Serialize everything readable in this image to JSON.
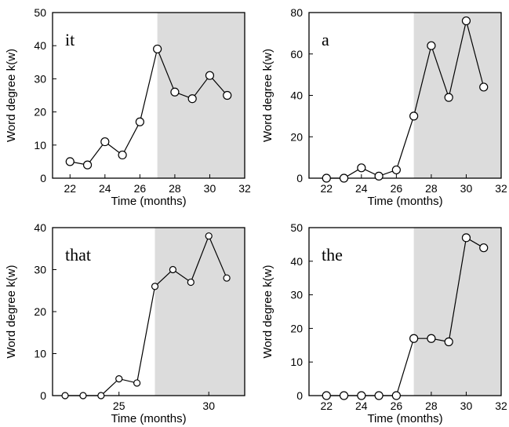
{
  "colors": {
    "shade": "#dcdcdc",
    "line": "#000000",
    "marker_fill": "#ffffff"
  },
  "chart_data": [
    {
      "type": "line",
      "panel_label": "it",
      "xlabel": "Time (months)",
      "ylabel": "Word degree k(w)",
      "xlim": [
        21,
        32
      ],
      "ylim": [
        0,
        50
      ],
      "xticks": [
        22,
        24,
        26,
        28,
        30,
        32
      ],
      "yticks": [
        0,
        10,
        20,
        30,
        40,
        50
      ],
      "shaded_region": [
        27,
        32
      ],
      "grid": false,
      "x": [
        22,
        23,
        24,
        25,
        26,
        27,
        28,
        29,
        30,
        31
      ],
      "y": [
        5,
        4,
        11,
        7,
        17,
        39,
        26,
        24,
        31,
        25
      ]
    },
    {
      "type": "line",
      "panel_label": "a",
      "xlabel": "Time (months)",
      "ylabel": "Word degree k(w)",
      "xlim": [
        21,
        32
      ],
      "ylim": [
        0,
        80
      ],
      "xticks": [
        22,
        24,
        26,
        28,
        30,
        32
      ],
      "yticks": [
        0,
        20,
        40,
        60,
        80
      ],
      "shaded_region": [
        27,
        32
      ],
      "grid": false,
      "x": [
        22,
        23,
        24,
        25,
        26,
        27,
        28,
        29,
        30,
        31
      ],
      "y": [
        0,
        0,
        5,
        1,
        4,
        30,
        64,
        39,
        76,
        44
      ]
    },
    {
      "type": "line",
      "panel_label": "that",
      "xlabel": "Time (months)",
      "ylabel": "Word degree k(w)",
      "xlim": [
        21.3,
        32
      ],
      "ylim": [
        0,
        40
      ],
      "xticks": [
        25,
        30
      ],
      "yticks": [
        0,
        10,
        20,
        30,
        40
      ],
      "shaded_region": [
        27,
        32
      ],
      "grid": false,
      "x": [
        22,
        23,
        24,
        25,
        26,
        27,
        28,
        29,
        30,
        31
      ],
      "y": [
        0,
        0,
        0,
        4,
        3,
        26,
        30,
        27,
        38,
        28
      ]
    },
    {
      "type": "line",
      "panel_label": "the",
      "xlabel": "Time (months)",
      "ylabel": "Word degree k(w)",
      "xlim": [
        21,
        32
      ],
      "ylim": [
        0,
        50
      ],
      "xticks": [
        22,
        24,
        26,
        28,
        30,
        32
      ],
      "yticks": [
        0,
        10,
        20,
        30,
        40,
        50
      ],
      "shaded_region": [
        27,
        32
      ],
      "grid": false,
      "x": [
        22,
        23,
        24,
        25,
        26,
        27,
        28,
        29,
        30,
        31
      ],
      "y": [
        0,
        0,
        0,
        0,
        0,
        17,
        17,
        16,
        47,
        44
      ]
    }
  ]
}
